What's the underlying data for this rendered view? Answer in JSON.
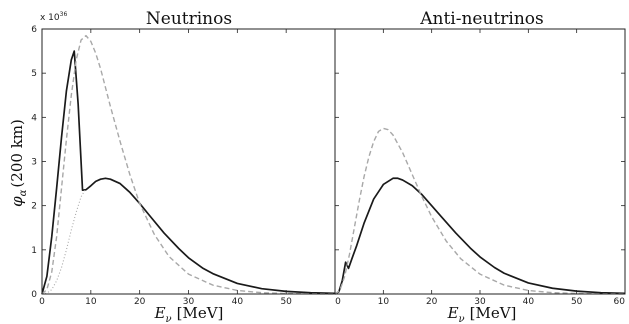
{
  "chart_data": {
    "type": "line",
    "shared_y": {
      "label": "φ",
      "label_subscript": "α",
      "label_suffix": "(200 km)",
      "multiplier": "x 10",
      "multiplier_exponent": "36",
      "ylim": [
        0,
        6
      ],
      "ticks": [
        0,
        1,
        2,
        3,
        4,
        5,
        6
      ]
    },
    "panels": [
      {
        "title": "Neutrinos",
        "xlabel_var": "E",
        "xlabel_sub": "ν",
        "xlabel_unit": "[MeV]",
        "xlim": [
          0,
          60
        ],
        "xticks": [
          0,
          10,
          20,
          30,
          40,
          50
        ],
        "series": [
          {
            "style": "solid-black",
            "points": [
              [
                0,
                0
              ],
              [
                1,
                0.4
              ],
              [
                2,
                1.3
              ],
              [
                3,
                2.4
              ],
              [
                4,
                3.55
              ],
              [
                5,
                4.6
              ],
              [
                6,
                5.3
              ],
              [
                6.6,
                5.5
              ],
              [
                7.4,
                4.3
              ],
              [
                8.3,
                2.35
              ],
              [
                9,
                2.36
              ],
              [
                10,
                2.45
              ],
              [
                11,
                2.55
              ],
              [
                12,
                2.6
              ],
              [
                13,
                2.62
              ],
              [
                14,
                2.6
              ],
              [
                16,
                2.5
              ],
              [
                18,
                2.3
              ],
              [
                20,
                2.05
              ],
              [
                22,
                1.78
              ],
              [
                25,
                1.38
              ],
              [
                28,
                1.03
              ],
              [
                30,
                0.82
              ],
              [
                33,
                0.58
              ],
              [
                35,
                0.46
              ],
              [
                40,
                0.24
              ],
              [
                45,
                0.12
              ],
              [
                50,
                0.06
              ],
              [
                55,
                0.03
              ],
              [
                60,
                0.015
              ]
            ]
          },
          {
            "style": "dashed-gray",
            "points": [
              [
                0,
                0
              ],
              [
                1,
                0.1
              ],
              [
                2,
                0.5
              ],
              [
                3,
                1.3
              ],
              [
                4,
                2.4
              ],
              [
                5,
                3.5
              ],
              [
                6,
                4.5
              ],
              [
                7,
                5.3
              ],
              [
                8,
                5.75
              ],
              [
                9,
                5.85
              ],
              [
                10,
                5.72
              ],
              [
                11,
                5.45
              ],
              [
                12,
                5.1
              ],
              [
                14,
                4.25
              ],
              [
                16,
                3.45
              ],
              [
                18,
                2.7
              ],
              [
                20,
                2.05
              ],
              [
                23,
                1.35
              ],
              [
                26,
                0.85
              ],
              [
                30,
                0.45
              ],
              [
                35,
                0.2
              ],
              [
                40,
                0.08
              ],
              [
                45,
                0.03
              ],
              [
                50,
                0.01
              ],
              [
                55,
                0.004
              ],
              [
                60,
                0.001
              ]
            ]
          },
          {
            "style": "dotted-gray",
            "points": [
              [
                0,
                0
              ],
              [
                1,
                0.02
              ],
              [
                2,
                0.1
              ],
              [
                3,
                0.3
              ],
              [
                4,
                0.6
              ],
              [
                5,
                1.0
              ],
              [
                6,
                1.45
              ],
              [
                7,
                1.85
              ],
              [
                8,
                2.2
              ],
              [
                8.8,
                2.35
              ]
            ]
          }
        ]
      },
      {
        "title": "Anti-neutrinos",
        "xlabel_var": "E",
        "xlabel_sub": "ν",
        "xlabel_unit": "[MeV]",
        "xlim": [
          0,
          60
        ],
        "xticks": [
          0,
          10,
          20,
          30,
          40,
          50,
          60
        ],
        "series": [
          {
            "style": "solid-black",
            "points": [
              [
                0,
                0
              ],
              [
                0.8,
                0.05
              ],
              [
                1.5,
                0.3
              ],
              [
                2.2,
                0.72
              ],
              [
                2.8,
                0.58
              ],
              [
                3.5,
                0.8
              ],
              [
                4.5,
                1.1
              ],
              [
                6,
                1.6
              ],
              [
                8,
                2.15
              ],
              [
                10,
                2.48
              ],
              [
                12,
                2.62
              ],
              [
                13,
                2.62
              ],
              [
                14,
                2.58
              ],
              [
                16,
                2.45
              ],
              [
                18,
                2.25
              ],
              [
                20,
                2.0
              ],
              [
                22,
                1.75
              ],
              [
                25,
                1.38
              ],
              [
                28,
                1.04
              ],
              [
                30,
                0.84
              ],
              [
                33,
                0.6
              ],
              [
                35,
                0.47
              ],
              [
                40,
                0.25
              ],
              [
                45,
                0.13
              ],
              [
                50,
                0.065
              ],
              [
                55,
                0.03
              ],
              [
                60,
                0.015
              ]
            ]
          },
          {
            "style": "dashed-gray",
            "points": [
              [
                0,
                0
              ],
              [
                1,
                0.08
              ],
              [
                2,
                0.4
              ],
              [
                3,
                0.9
              ],
              [
                4,
                1.5
              ],
              [
                5,
                2.1
              ],
              [
                6,
                2.65
              ],
              [
                7,
                3.1
              ],
              [
                8,
                3.45
              ],
              [
                9,
                3.68
              ],
              [
                10,
                3.75
              ],
              [
                11,
                3.72
              ],
              [
                12,
                3.6
              ],
              [
                14,
                3.2
              ],
              [
                16,
                2.7
              ],
              [
                18,
                2.2
              ],
              [
                20,
                1.75
              ],
              [
                23,
                1.2
              ],
              [
                26,
                0.8
              ],
              [
                30,
                0.45
              ],
              [
                35,
                0.2
              ],
              [
                40,
                0.08
              ],
              [
                45,
                0.03
              ],
              [
                50,
                0.012
              ],
              [
                55,
                0.005
              ],
              [
                60,
                0.002
              ]
            ]
          }
        ]
      }
    ]
  }
}
